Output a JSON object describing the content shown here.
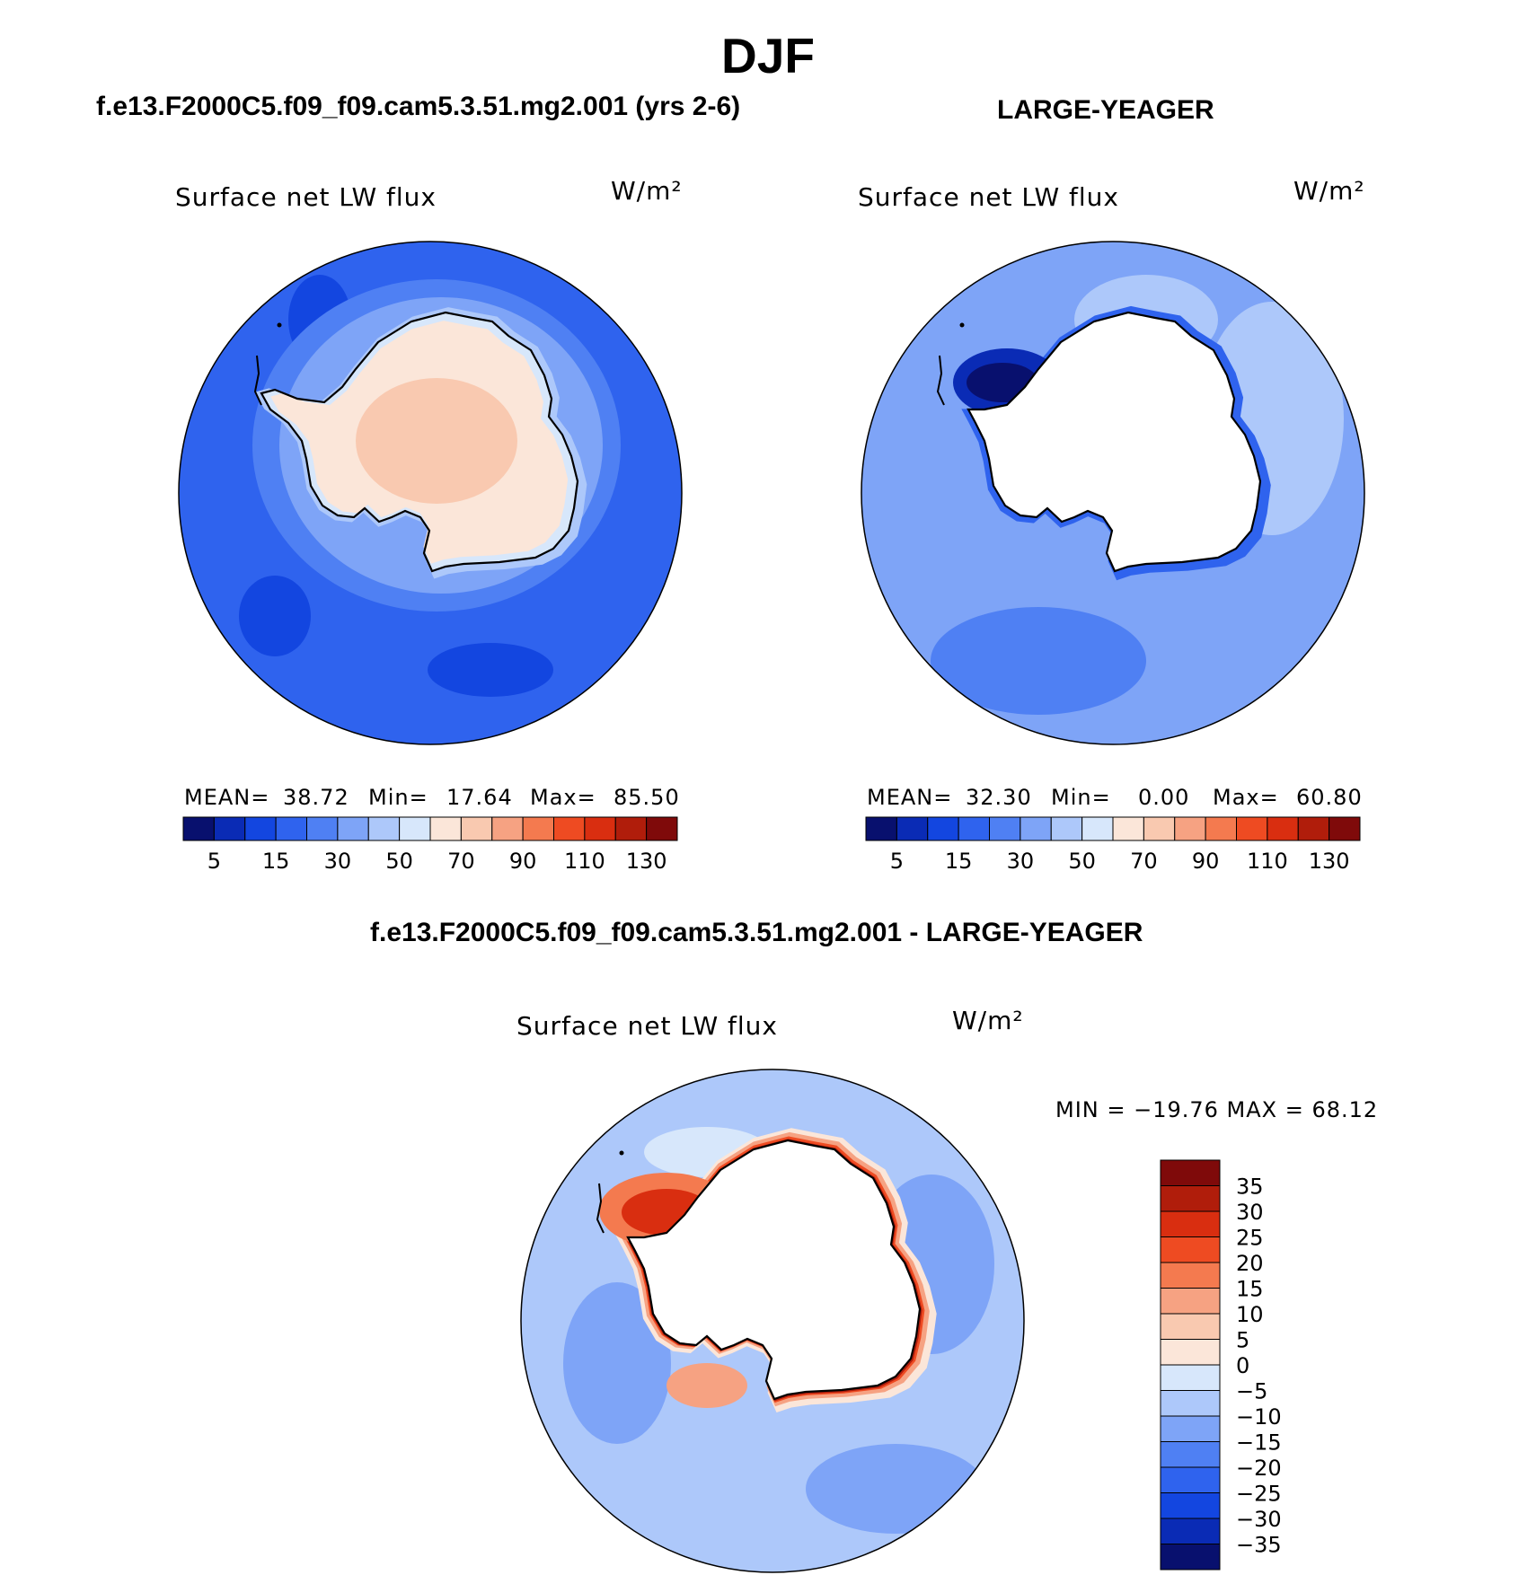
{
  "page": {
    "title": "DJF",
    "case_title": "f.e13.F2000C5.f09_f09.cam5.3.51.mg2.001 (yrs 2-6)",
    "obs_title": "LARGE-YEAGER",
    "diff_title": "f.e13.F2000C5.f09_f09.cam5.3.51.mg2.001 - LARGE-YEAGER"
  },
  "panels": {
    "case": {
      "variable": "Surface net LW flux",
      "units": "W/m²",
      "mean_label": "MEAN=",
      "mean": "38.72",
      "min_label": "Min=",
      "min": "17.64",
      "max_label": "Max=",
      "max": "85.50"
    },
    "obs": {
      "variable": "Surface net LW flux",
      "units": "W/m²",
      "mean_label": "MEAN=",
      "mean": "32.30",
      "min_label": "Min=",
      "min": "0.00",
      "max_label": "Max=",
      "max": "60.80"
    },
    "diff": {
      "variable": "Surface net LW flux",
      "units": "W/m²",
      "minmax_text": "MIN = −19.76  MAX =   68.12"
    }
  },
  "colors": {
    "main_scale": [
      "#08106e",
      "#0a2bb5",
      "#1346e0",
      "#2f63ee",
      "#4f80f3",
      "#7ea4f7",
      "#adc8fa",
      "#d7e7fb",
      "#fbe6d9",
      "#f9c9b0",
      "#f6a282",
      "#f47a4f",
      "#ee4b22",
      "#d92e10",
      "#b01d0b",
      "#7f0a0a"
    ],
    "diff_scale": [
      "#08106e",
      "#0a2bb5",
      "#1346e0",
      "#2f63ee",
      "#4f80f3",
      "#7ea4f7",
      "#adc8fa",
      "#d7e7fb",
      "#fbe6d9",
      "#f9c9b0",
      "#f6a282",
      "#f47a4f",
      "#ee4b22",
      "#d92e10",
      "#b01d0b",
      "#7f0a0a"
    ],
    "coast": "#000000",
    "land_mask": "#ffffff"
  },
  "chart_data": [
    {
      "type": "heatmap",
      "name": "model",
      "title": "Surface net LW flux",
      "units": "W/m²",
      "projection": "south-polar-stereographic",
      "colorbar_ticks": [
        "5",
        "15",
        "30",
        "50",
        "70",
        "90",
        "110",
        "130"
      ],
      "levels": [
        5,
        10,
        15,
        20,
        30,
        40,
        50,
        60,
        70,
        80,
        90,
        100,
        110,
        120,
        130
      ],
      "stats": {
        "mean": 38.72,
        "min": 17.64,
        "max": 85.5
      }
    },
    {
      "type": "heatmap",
      "name": "observations",
      "title": "Surface net LW flux",
      "units": "W/m²",
      "projection": "south-polar-stereographic",
      "colorbar_ticks": [
        "5",
        "15",
        "30",
        "50",
        "70",
        "90",
        "110",
        "130"
      ],
      "levels": [
        5,
        10,
        15,
        20,
        30,
        40,
        50,
        60,
        70,
        80,
        90,
        100,
        110,
        120,
        130
      ],
      "stats": {
        "mean": 32.3,
        "min": 0.0,
        "max": 60.8
      }
    },
    {
      "type": "heatmap",
      "name": "difference",
      "title": "Surface net LW flux",
      "units": "W/m²",
      "projection": "south-polar-stereographic",
      "colorbar_ticks": [
        "35",
        "30",
        "25",
        "20",
        "15",
        "10",
        "5",
        "0",
        "−5",
        "−10",
        "−15",
        "−20",
        "−25",
        "−30",
        "−35"
      ],
      "levels": [
        -35,
        -30,
        -25,
        -20,
        -15,
        -10,
        -5,
        0,
        5,
        10,
        15,
        20,
        25,
        30,
        35
      ],
      "stats": {
        "min": -19.76,
        "max": 68.12
      }
    }
  ]
}
